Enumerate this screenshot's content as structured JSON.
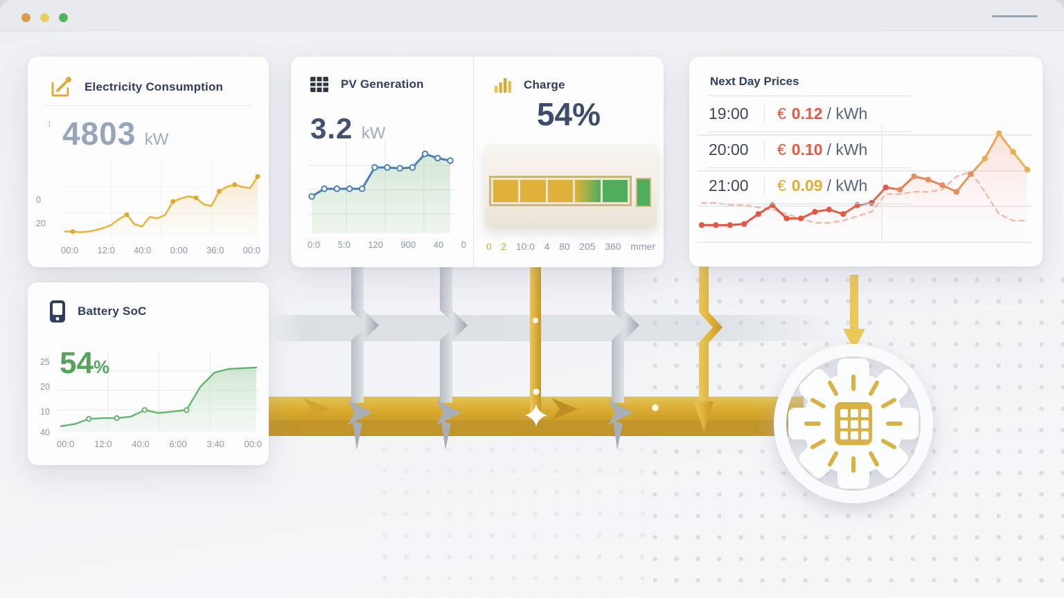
{
  "window": {
    "traffic_light_colors": [
      "#d99c43",
      "#e7cd5f",
      "#4fb65a"
    ]
  },
  "cards": {
    "consumption": {
      "title": "Electricity Consumption",
      "sup": "1",
      "value": "4803",
      "unit": "kW"
    },
    "pv": {
      "title": "PV Generation",
      "value": "3.2",
      "unit": "kW"
    },
    "charge": {
      "title": "Charge",
      "value": "54%",
      "segments": [
        "#e0b13a",
        "#e0b13a",
        "#e0b13a",
        "linear-gradient(90deg,#e0b13a,#4fae5b)",
        "#4fae5b"
      ],
      "extra_segment": "#4fae5b",
      "x_ticks": [
        "0",
        "2",
        "10:0",
        "4",
        "80",
        "205",
        "360",
        "mmer"
      ]
    },
    "prices": {
      "title": "Next Day Prices",
      "rows": [
        {
          "time": "19:00",
          "currency": "€",
          "price": "0.12",
          "per": "/ kWh",
          "price_color": "#e5593f"
        },
        {
          "time": "20:00",
          "currency": "€",
          "price": "0.10",
          "per": "/ kWh",
          "price_color": "#e5593f"
        },
        {
          "time": "21:00",
          "currency": "€",
          "price": "0.09",
          "per": "/ kWh",
          "price_color": "#e3ac2e"
        }
      ]
    },
    "battery": {
      "title": "Battery SoC",
      "value": "54",
      "unit": "%"
    }
  },
  "chart_data": [
    {
      "id": "consumption",
      "type": "area",
      "title": "Electricity Consumption",
      "current_value": "4803 kW",
      "color": "#e4b53f",
      "ylim": [
        0,
        100
      ],
      "x_ticks": [
        "00:0",
        "12:0",
        "40:0",
        "0:00",
        "36:0",
        "00:0"
      ],
      "y_ticks": [
        "0",
        "20"
      ],
      "values": [
        7,
        7,
        6,
        7,
        9,
        12,
        16,
        24,
        30,
        17,
        14,
        27,
        25,
        30,
        48,
        52,
        55,
        53,
        44,
        42,
        62,
        68,
        71,
        68,
        66,
        82
      ],
      "markers": [
        1,
        8,
        14,
        17,
        20,
        22,
        25
      ],
      "marker_fill": "#dfa833",
      "marker_r": 3.5
    },
    {
      "id": "pv",
      "type": "line",
      "title": "PV Generation",
      "current_value": "3.2 kW",
      "color": "#4a80b0",
      "ylim": [
        0,
        100
      ],
      "x_ticks": [
        "0:0",
        "5:0",
        "120",
        "900",
        "40",
        "0"
      ],
      "values": [
        40,
        49,
        49,
        49,
        49,
        74,
        74,
        73,
        74,
        90,
        85,
        82
      ],
      "markers": "all",
      "marker_fill": "#ffffff",
      "marker_stroke": "#4a80b0",
      "marker_r": 3.8
    },
    {
      "id": "battery",
      "type": "area",
      "title": "Battery SoC",
      "current_value": "54%",
      "color": "#66b36e",
      "ylim": [
        0,
        100
      ],
      "x_ticks": [
        "00:0",
        "12:0",
        "40:0",
        "6:00",
        "3:40",
        "00:0"
      ],
      "y_ticks": [
        "25",
        "20",
        "10",
        "40"
      ],
      "values": [
        4,
        7,
        14,
        15,
        15,
        17,
        26,
        22,
        24,
        26,
        58,
        77,
        82,
        83,
        84
      ],
      "markers": [
        2,
        4,
        6,
        9
      ],
      "marker_fill": "#ffffff",
      "marker_stroke": "#66b36e",
      "marker_r": 3.2
    },
    {
      "id": "prices",
      "type": "line",
      "title": "Next Day Prices",
      "ylim": [
        0,
        100
      ],
      "series": [
        {
          "name": "price",
          "color": "#e2614a",
          "values": [
            13,
            13,
            13,
            14,
            23,
            31,
            19,
            19,
            25,
            27,
            23,
            31,
            33,
            47,
            45,
            57,
            54,
            49,
            43,
            59,
            73,
            96,
            79,
            63
          ],
          "markers": "all",
          "marker_r": 4.2,
          "marker_colors": [
            {
              "until": 13,
              "color": "#e25a43"
            },
            {
              "until": 19,
              "color": "#e88a63"
            },
            {
              "until": 23,
              "color": "#e9ad4f"
            }
          ]
        },
        {
          "name": "trend",
          "color": "#f0b9a9",
          "dashed": true,
          "values": [
            33,
            33,
            31,
            31,
            29,
            27,
            23,
            19,
            15,
            15,
            17,
            21,
            25,
            41,
            41,
            43,
            43,
            45,
            57,
            61,
            43,
            23,
            17,
            17
          ]
        }
      ]
    }
  ]
}
